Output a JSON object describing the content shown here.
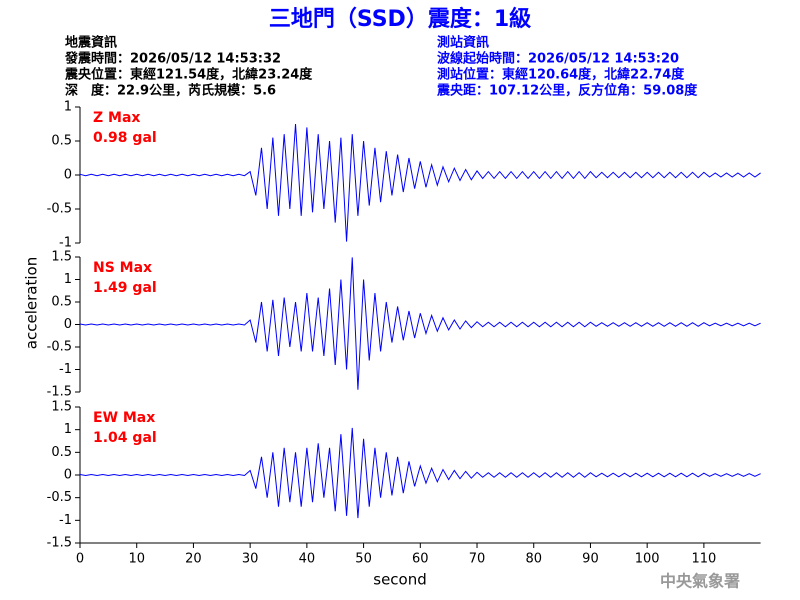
{
  "header": {
    "title": "三地門（SSD）震度：1級",
    "info_left": [
      "地震資訊",
      "發震時間：2026/05/12 14:53:32",
      "震央位置：東經121.54度，北緯23.24度",
      "深　度：22.9公里，芮氏規模：5.6"
    ],
    "info_right": [
      "測站資訊",
      "波線起始時間：2026/05/12 14:53:20",
      "測站位置：東經120.64度，北緯22.74度",
      "震央距：107.12公里，反方位角：59.08度"
    ]
  },
  "ylabel": "acceleration",
  "xlabel": "second",
  "footer": "中央氣象署",
  "chart_data": [
    {
      "type": "line",
      "label": "Z Max",
      "max": "0.98 gal",
      "color": "#0000ff",
      "xlim": [
        0,
        120
      ],
      "ylim": [
        -1,
        1
      ],
      "yticks": [
        -1,
        -0.5,
        0,
        0.5,
        1
      ],
      "x": [
        0,
        1,
        2,
        3,
        4,
        5,
        6,
        7,
        8,
        9,
        10,
        11,
        12,
        13,
        14,
        15,
        16,
        17,
        18,
        19,
        20,
        21,
        22,
        23,
        24,
        25,
        26,
        27,
        28,
        29,
        30,
        31,
        32,
        33,
        34,
        35,
        36,
        37,
        38,
        39,
        40,
        41,
        42,
        43,
        44,
        45,
        46,
        47,
        48,
        49,
        50,
        51,
        52,
        53,
        54,
        55,
        56,
        57,
        58,
        59,
        60,
        61,
        62,
        63,
        64,
        65,
        66,
        67,
        68,
        69,
        70,
        71,
        72,
        73,
        74,
        75,
        76,
        77,
        78,
        79,
        80,
        81,
        82,
        83,
        84,
        85,
        86,
        87,
        88,
        89,
        90,
        91,
        92,
        93,
        94,
        95,
        96,
        97,
        98,
        99,
        100,
        101,
        102,
        103,
        104,
        105,
        106,
        107,
        108,
        109,
        110,
        111,
        112,
        113,
        114,
        115,
        116,
        117,
        118,
        119,
        120
      ],
      "values": [
        0.01,
        -0.01,
        0.01,
        -0.01,
        0.01,
        -0.01,
        0.01,
        -0.01,
        0.01,
        -0.01,
        0.01,
        -0.01,
        0.01,
        -0.01,
        0.01,
        -0.01,
        0.01,
        -0.01,
        0.01,
        -0.01,
        0.01,
        -0.01,
        0.01,
        -0.01,
        0.01,
        -0.01,
        0.01,
        -0.01,
        0.01,
        -0.01,
        0.05,
        -0.3,
        0.4,
        -0.5,
        0.55,
        -0.6,
        0.6,
        -0.5,
        0.75,
        -0.6,
        0.7,
        -0.55,
        0.6,
        -0.5,
        0.5,
        -0.7,
        0.55,
        -0.98,
        0.6,
        -0.6,
        0.5,
        -0.45,
        0.4,
        -0.4,
        0.35,
        -0.3,
        0.3,
        -0.25,
        0.25,
        -0.2,
        0.2,
        -0.18,
        0.15,
        -0.15,
        0.12,
        -0.1,
        0.1,
        -0.08,
        0.08,
        -0.07,
        0.06,
        -0.05,
        0.05,
        -0.05,
        0.05,
        -0.05,
        0.05,
        -0.05,
        0.05,
        -0.05,
        0.05,
        -0.05,
        0.05,
        -0.05,
        0.05,
        -0.05,
        0.05,
        -0.05,
        0.05,
        -0.05,
        0.05,
        -0.04,
        0.04,
        -0.04,
        0.04,
        -0.04,
        0.04,
        -0.04,
        0.04,
        -0.04,
        0.04,
        -0.04,
        0.04,
        -0.04,
        0.04,
        -0.04,
        0.04,
        -0.04,
        0.04,
        -0.04,
        0.04,
        -0.03,
        0.03,
        -0.03,
        0.03,
        -0.03,
        0.03,
        -0.03,
        0.03,
        -0.03,
        0.03
      ]
    },
    {
      "type": "line",
      "label": "NS Max",
      "max": "1.49 gal",
      "color": "#0000ff",
      "xlim": [
        0,
        120
      ],
      "ylim": [
        -1.5,
        1.5
      ],
      "yticks": [
        -1.5,
        -1,
        -0.5,
        0,
        0.5,
        1,
        1.5
      ],
      "x": [
        0,
        1,
        2,
        3,
        4,
        5,
        6,
        7,
        8,
        9,
        10,
        11,
        12,
        13,
        14,
        15,
        16,
        17,
        18,
        19,
        20,
        21,
        22,
        23,
        24,
        25,
        26,
        27,
        28,
        29,
        30,
        31,
        32,
        33,
        34,
        35,
        36,
        37,
        38,
        39,
        40,
        41,
        42,
        43,
        44,
        45,
        46,
        47,
        48,
        49,
        50,
        51,
        52,
        53,
        54,
        55,
        56,
        57,
        58,
        59,
        60,
        61,
        62,
        63,
        64,
        65,
        66,
        67,
        68,
        69,
        70,
        71,
        72,
        73,
        74,
        75,
        76,
        77,
        78,
        79,
        80,
        81,
        82,
        83,
        84,
        85,
        86,
        87,
        88,
        89,
        90,
        91,
        92,
        93,
        94,
        95,
        96,
        97,
        98,
        99,
        100,
        101,
        102,
        103,
        104,
        105,
        106,
        107,
        108,
        109,
        110,
        111,
        112,
        113,
        114,
        115,
        116,
        117,
        118,
        119,
        120
      ],
      "values": [
        0.01,
        -0.01,
        0.01,
        -0.01,
        0.01,
        -0.01,
        0.01,
        -0.01,
        0.01,
        -0.01,
        0.01,
        -0.01,
        0.01,
        -0.01,
        0.01,
        -0.01,
        0.01,
        -0.01,
        0.01,
        -0.01,
        0.01,
        -0.01,
        0.01,
        -0.01,
        0.01,
        -0.01,
        0.01,
        -0.01,
        0.01,
        -0.01,
        0.1,
        -0.4,
        0.5,
        -0.6,
        0.55,
        -0.7,
        0.6,
        -0.5,
        0.5,
        -0.6,
        0.7,
        -0.6,
        0.6,
        -0.7,
        0.8,
        -0.9,
        1.0,
        -1.0,
        1.49,
        -1.45,
        1.0,
        -0.8,
        0.7,
        -0.6,
        0.5,
        -0.4,
        0.4,
        -0.35,
        0.3,
        -0.3,
        0.25,
        -0.2,
        0.2,
        -0.15,
        0.15,
        -0.12,
        0.1,
        -0.1,
        0.08,
        -0.07,
        0.06,
        -0.05,
        0.05,
        -0.05,
        0.05,
        -0.05,
        0.05,
        -0.05,
        0.05,
        -0.05,
        0.05,
        -0.05,
        0.05,
        -0.05,
        0.05,
        -0.05,
        0.05,
        -0.05,
        0.05,
        -0.05,
        0.05,
        -0.04,
        0.04,
        -0.04,
        0.04,
        -0.04,
        0.04,
        -0.04,
        0.04,
        -0.04,
        0.04,
        -0.04,
        0.04,
        -0.04,
        0.04,
        -0.04,
        0.04,
        -0.04,
        0.04,
        -0.04,
        0.04,
        -0.03,
        0.03,
        -0.03,
        0.03,
        -0.03,
        0.03,
        -0.03,
        0.03,
        -0.03,
        0.03
      ]
    },
    {
      "type": "line",
      "label": "EW Max",
      "max": "1.04 gal",
      "color": "#0000ff",
      "xlim": [
        0,
        120
      ],
      "ylim": [
        -1.5,
        1.5
      ],
      "yticks": [
        -1.5,
        -1,
        -0.5,
        0,
        0.5,
        1,
        1.5
      ],
      "xticks": [
        0,
        10,
        20,
        30,
        40,
        50,
        60,
        70,
        80,
        90,
        100,
        110
      ],
      "x": [
        0,
        1,
        2,
        3,
        4,
        5,
        6,
        7,
        8,
        9,
        10,
        11,
        12,
        13,
        14,
        15,
        16,
        17,
        18,
        19,
        20,
        21,
        22,
        23,
        24,
        25,
        26,
        27,
        28,
        29,
        30,
        31,
        32,
        33,
        34,
        35,
        36,
        37,
        38,
        39,
        40,
        41,
        42,
        43,
        44,
        45,
        46,
        47,
        48,
        49,
        50,
        51,
        52,
        53,
        54,
        55,
        56,
        57,
        58,
        59,
        60,
        61,
        62,
        63,
        64,
        65,
        66,
        67,
        68,
        69,
        70,
        71,
        72,
        73,
        74,
        75,
        76,
        77,
        78,
        79,
        80,
        81,
        82,
        83,
        84,
        85,
        86,
        87,
        88,
        89,
        90,
        91,
        92,
        93,
        94,
        95,
        96,
        97,
        98,
        99,
        100,
        101,
        102,
        103,
        104,
        105,
        106,
        107,
        108,
        109,
        110,
        111,
        112,
        113,
        114,
        115,
        116,
        117,
        118,
        119,
        120
      ],
      "values": [
        0.01,
        -0.01,
        0.01,
        -0.01,
        0.01,
        -0.01,
        0.01,
        -0.01,
        0.01,
        -0.01,
        0.01,
        -0.01,
        0.01,
        -0.01,
        0.01,
        -0.01,
        0.01,
        -0.01,
        0.01,
        -0.01,
        0.01,
        -0.01,
        0.01,
        -0.01,
        0.01,
        -0.01,
        0.01,
        -0.01,
        0.01,
        -0.01,
        0.1,
        -0.3,
        0.4,
        -0.5,
        0.5,
        -0.7,
        0.6,
        -0.6,
        0.5,
        -0.7,
        0.6,
        -0.6,
        0.7,
        -0.5,
        0.6,
        -0.8,
        0.9,
        -0.9,
        1.04,
        -0.95,
        0.8,
        -0.7,
        0.6,
        -0.5,
        0.5,
        -0.45,
        0.4,
        -0.4,
        0.3,
        -0.25,
        0.2,
        -0.18,
        0.15,
        -0.15,
        0.12,
        -0.1,
        0.1,
        -0.08,
        0.08,
        -0.07,
        0.06,
        -0.05,
        0.05,
        -0.05,
        0.05,
        -0.05,
        0.05,
        -0.05,
        0.05,
        -0.05,
        0.05,
        -0.05,
        0.05,
        -0.05,
        0.05,
        -0.05,
        0.05,
        -0.05,
        0.05,
        -0.05,
        0.05,
        -0.04,
        0.04,
        -0.04,
        0.04,
        -0.04,
        0.04,
        -0.04,
        0.04,
        -0.04,
        0.04,
        -0.04,
        0.04,
        -0.04,
        0.04,
        -0.04,
        0.04,
        -0.04,
        0.04,
        -0.04,
        0.04,
        -0.03,
        0.03,
        -0.03,
        0.03,
        -0.03,
        0.03,
        -0.03,
        0.03,
        -0.03,
        0.03
      ]
    }
  ]
}
